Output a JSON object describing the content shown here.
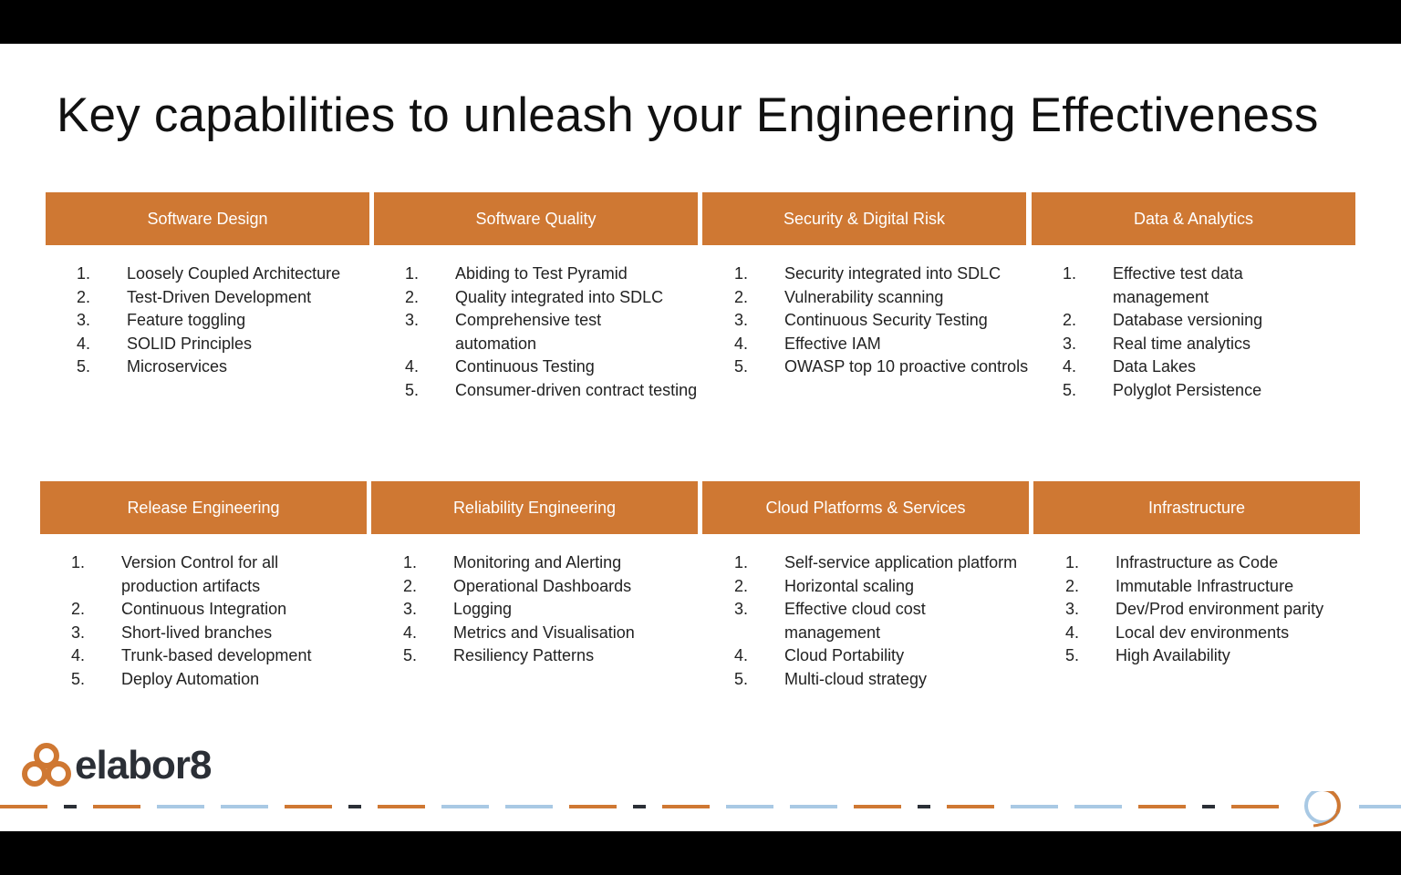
{
  "title": "Key capabilities to unleash your Engineering Effectiveness",
  "cards": [
    {
      "header": "Software Design",
      "items": [
        {
          "num": "1.",
          "text": "Loosely Coupled Architecture"
        },
        {
          "num": "2.",
          "text": "Test-Driven Development"
        },
        {
          "num": "3.",
          "text": "Feature toggling"
        },
        {
          "num": "4.",
          "text": "SOLID Principles"
        },
        {
          "num": "5.",
          "text": "Microservices"
        }
      ]
    },
    {
      "header": "Software Quality",
      "items": [
        {
          "num": "1.",
          "text": "Abiding to Test Pyramid"
        },
        {
          "num": "2.",
          "text": "Quality integrated into SDLC"
        },
        {
          "num": "3.",
          "text": "Comprehensive test automation"
        },
        {
          "num": "4.",
          "text": "Continuous Testing"
        },
        {
          "num": "5.",
          "text": "Consumer-driven contract testing"
        }
      ]
    },
    {
      "header": "Security & Digital Risk",
      "items": [
        {
          "num": "1.",
          "text": "Security integrated into SDLC"
        },
        {
          "num": "2.",
          "text": "Vulnerability scanning"
        },
        {
          "num": "3.",
          "text": "Continuous Security Testing"
        },
        {
          "num": "4.",
          "text": "Effective IAM"
        },
        {
          "num": "5.",
          "text": "OWASP top 10 proactive controls"
        }
      ]
    },
    {
      "header": "Data & Analytics",
      "items": [
        {
          "num": "1.",
          "text": "Effective test data management"
        },
        {
          "num": "2.",
          "text": "Database versioning"
        },
        {
          "num": "3.",
          "text": "Real time analytics"
        },
        {
          "num": "4.",
          "text": "Data Lakes"
        },
        {
          "num": "5.",
          "text": "Polyglot Persistence"
        }
      ]
    },
    {
      "header": "Release Engineering",
      "items": [
        {
          "num": "1.",
          "text": "Version Control for all production artifacts"
        },
        {
          "num": "2.",
          "text": "Continuous Integration"
        },
        {
          "num": "3.",
          "text": "Short-lived branches"
        },
        {
          "num": "4.",
          "text": "Trunk-based development"
        },
        {
          "num": "5.",
          "text": "Deploy Automation"
        }
      ]
    },
    {
      "header": "Reliability Engineering",
      "items": [
        {
          "num": "1.",
          "text": "Monitoring and Alerting"
        },
        {
          "num": "2.",
          "text": "Operational Dashboards"
        },
        {
          "num": "3.",
          "text": "Logging"
        },
        {
          "num": "4.",
          "text": "Metrics and Visualisation"
        },
        {
          "num": "5.",
          "text": "Resiliency Patterns"
        }
      ]
    },
    {
      "header": "Cloud Platforms & Services",
      "items": [
        {
          "num": "1.",
          "text": "Self-service application platform"
        },
        {
          "num": "2.",
          "text": "Horizontal scaling"
        },
        {
          "num": "3.",
          "text": "Effective cloud cost management"
        },
        {
          "num": "4.",
          "text": "Cloud Portability"
        },
        {
          "num": "5.",
          "text": "Multi-cloud strategy"
        }
      ]
    },
    {
      "header": "Infrastructure",
      "items": [
        {
          "num": "1.",
          "text": "Infrastructure as Code"
        },
        {
          "num": "2.",
          "text": "Immutable Infrastructure"
        },
        {
          "num": "3.",
          "text": "Dev/Prod environment parity"
        },
        {
          "num": "4.",
          "text": "Local dev environments"
        },
        {
          "num": "5.",
          "text": "High Availability"
        }
      ]
    }
  ],
  "logo": {
    "text": "elabor8",
    "icon": "three-rings-logo-icon"
  },
  "colors": {
    "accent": "#cf7833",
    "dash_dark": "#2b2f36",
    "dash_light": "#a9c9e4",
    "text": "#222222"
  }
}
